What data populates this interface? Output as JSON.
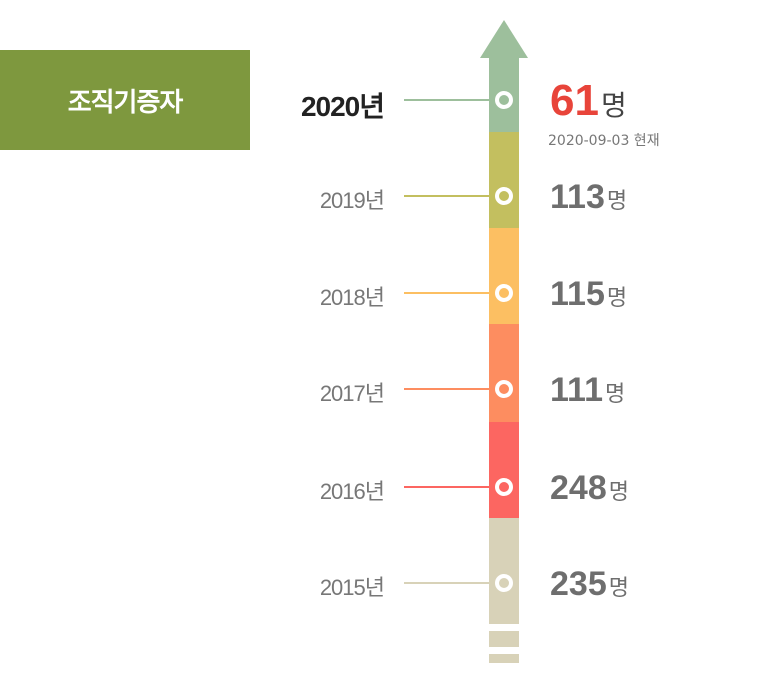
{
  "header": {
    "title": "조직기증자"
  },
  "timeline": {
    "items": [
      {
        "year": "2020년",
        "count": "61",
        "unit": "명",
        "color": "#9dbf9c",
        "note": "2020-09-03 현재"
      },
      {
        "year": "2019년",
        "count": "113",
        "unit": "명",
        "color": "#c3bf5f"
      },
      {
        "year": "2018년",
        "count": "115",
        "unit": "명",
        "color": "#fcbf62"
      },
      {
        "year": "2017년",
        "count": "111",
        "unit": "명",
        "color": "#fd8d60"
      },
      {
        "year": "2016년",
        "count": "248",
        "unit": "명",
        "color": "#fc6661"
      },
      {
        "year": "2015년",
        "count": "235",
        "unit": "명",
        "color": "#d8d2b8"
      }
    ]
  }
}
